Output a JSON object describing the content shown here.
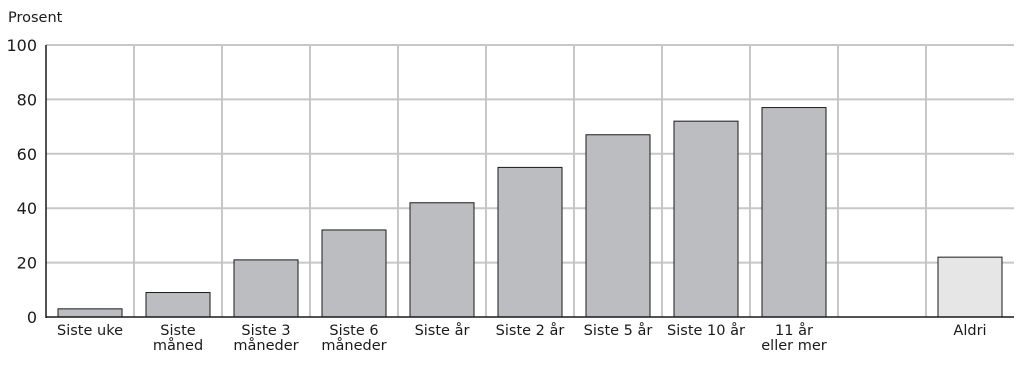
{
  "chart_data": {
    "type": "bar",
    "ylabel": "Prosent",
    "ylim": [
      0,
      100
    ],
    "yticks": [
      0,
      20,
      40,
      60,
      80,
      100
    ],
    "grid": true,
    "categories": [
      [
        "Siste uke"
      ],
      [
        "Siste",
        "måned"
      ],
      [
        "Siste 3",
        "måneder"
      ],
      [
        "Siste 6",
        "måneder"
      ],
      [
        "Siste år"
      ],
      [
        "Siste 2 år"
      ],
      [
        "Siste 5 år"
      ],
      [
        "Siste 10 år"
      ],
      [
        "11 år",
        "eller mer"
      ],
      [
        ""
      ],
      [
        "Aldri"
      ]
    ],
    "values": [
      3,
      9,
      21,
      32,
      42,
      55,
      67,
      72,
      77,
      null,
      22
    ],
    "colors": {
      "bar": "#bcbdc0",
      "highlight_bar": "#e6e6e7",
      "grid": "#c7c7c7",
      "outline": "#1a1a1a"
    },
    "highlight_categories": [
      "Aldri"
    ]
  }
}
